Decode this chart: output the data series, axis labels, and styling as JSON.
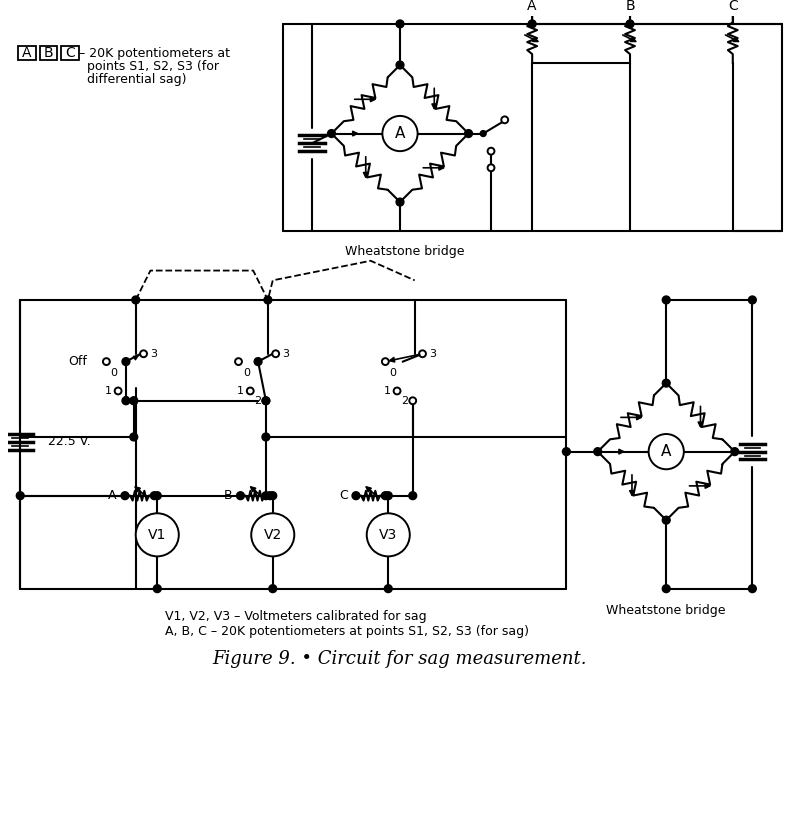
{
  "title": "Figure 9. • Circuit for sag measurement.",
  "wheatstone_label": "Wheatstone bridge",
  "battery_voltage": "22.5 V.",
  "off_label": "Off",
  "legend_top_abc": "A, B, C – 20K potentiometers at",
  "legend_top_line2": "    points S1, S2, S3 (for",
  "legend_top_line3": "    differential sag)",
  "legend_v": "V1, V2, V3 – Voltmeters calibrated for sag",
  "legend_abc2": "A, B, C – 20K potentiometers at points S1, S2, S3 (for sag)",
  "bg": "#ffffff",
  "fg": "#000000"
}
